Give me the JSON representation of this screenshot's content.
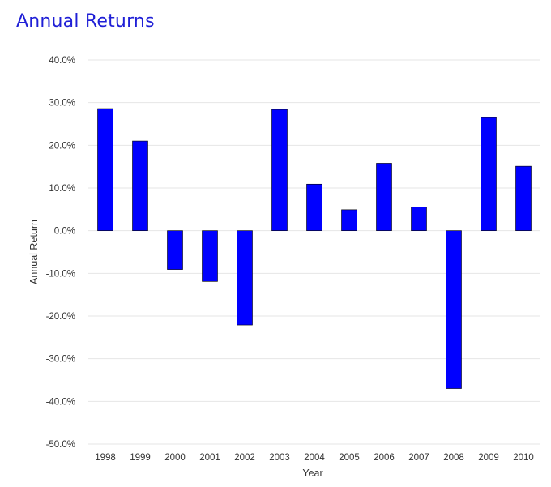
{
  "chart_data": {
    "type": "bar",
    "title": "Annual Returns",
    "xlabel": "Year",
    "ylabel": "Annual Return",
    "categories": [
      "1998",
      "1999",
      "2000",
      "2001",
      "2002",
      "2003",
      "2004",
      "2005",
      "2006",
      "2007",
      "2008",
      "2009",
      "2010"
    ],
    "series": [
      {
        "values": [
          28.6,
          21.0,
          -9.1,
          -11.9,
          -22.1,
          28.4,
          10.9,
          4.9,
          15.8,
          5.5,
          -37.0,
          26.5,
          15.1
        ]
      }
    ],
    "ylim": [
      -50,
      40
    ],
    "yticks": [
      40,
      30,
      20,
      10,
      0,
      -10,
      -20,
      -30,
      -40,
      -50
    ],
    "ytick_labels": [
      "40.0%",
      "30.0%",
      "20.0%",
      "10.0%",
      "0.0%",
      "-10.0%",
      "-20.0%",
      "-30.0%",
      "-40.0%",
      "-50.0%"
    ],
    "grid": true,
    "legend": "none",
    "colors": {
      "bar": "#0000ff",
      "bar_stroke": "#000000",
      "title": "#1f1fd6",
      "grid": "#e6e6e6",
      "text": "#333333"
    }
  }
}
